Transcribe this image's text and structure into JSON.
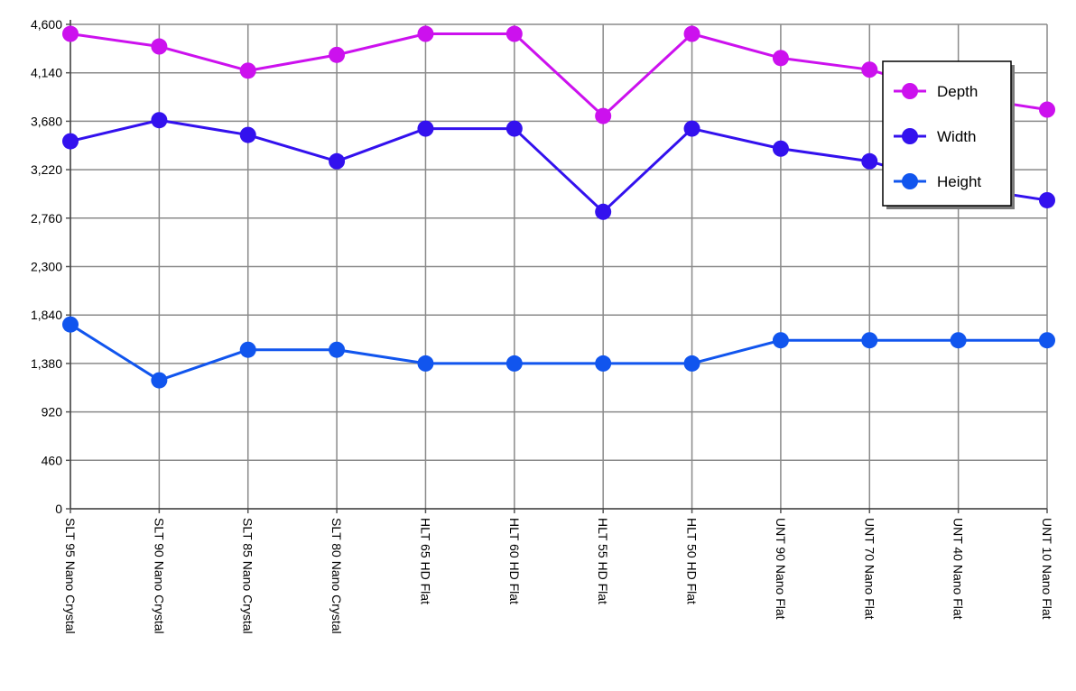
{
  "chart_data": {
    "type": "line",
    "categories": [
      "SLT 95 Nano Crystal",
      "SLT 90 Nano Crystal",
      "SLT 85 Nano Crystal",
      "SLT 80 Nano Crystal",
      "HLT 65 HD Flat",
      "HLT 60 HD Flat",
      "HLT 55 HD Flat",
      "HLT 50 HD Flat",
      "UNT 90 Nano Flat",
      "UNT 70 Nano Flat",
      "UNT 40 Nano Flat",
      "UNT 10 Nano Flat"
    ],
    "series": [
      {
        "name": "Depth",
        "color": "#cc11ee",
        "values": [
          4510,
          4390,
          4160,
          4310,
          4510,
          4510,
          3730,
          4510,
          4280,
          4170,
          3920,
          3790
        ]
      },
      {
        "name": "Width",
        "color": "#3311ee",
        "values": [
          3490,
          3690,
          3550,
          3300,
          3610,
          3610,
          2820,
          3610,
          3420,
          3300,
          3060,
          2930
        ]
      },
      {
        "name": "Height",
        "color": "#1155ee",
        "values": [
          1750,
          1220,
          1510,
          1510,
          1380,
          1380,
          1380,
          1380,
          1600,
          1600,
          1600,
          1600
        ]
      }
    ],
    "yticks": [
      "0",
      "460",
      "920",
      "1,380",
      "1,840",
      "2,300",
      "2,760",
      "3,220",
      "3,680",
      "4,140",
      "4,600"
    ],
    "ylim": [
      0,
      4600
    ],
    "grid": true,
    "legend_position": "top-right"
  }
}
